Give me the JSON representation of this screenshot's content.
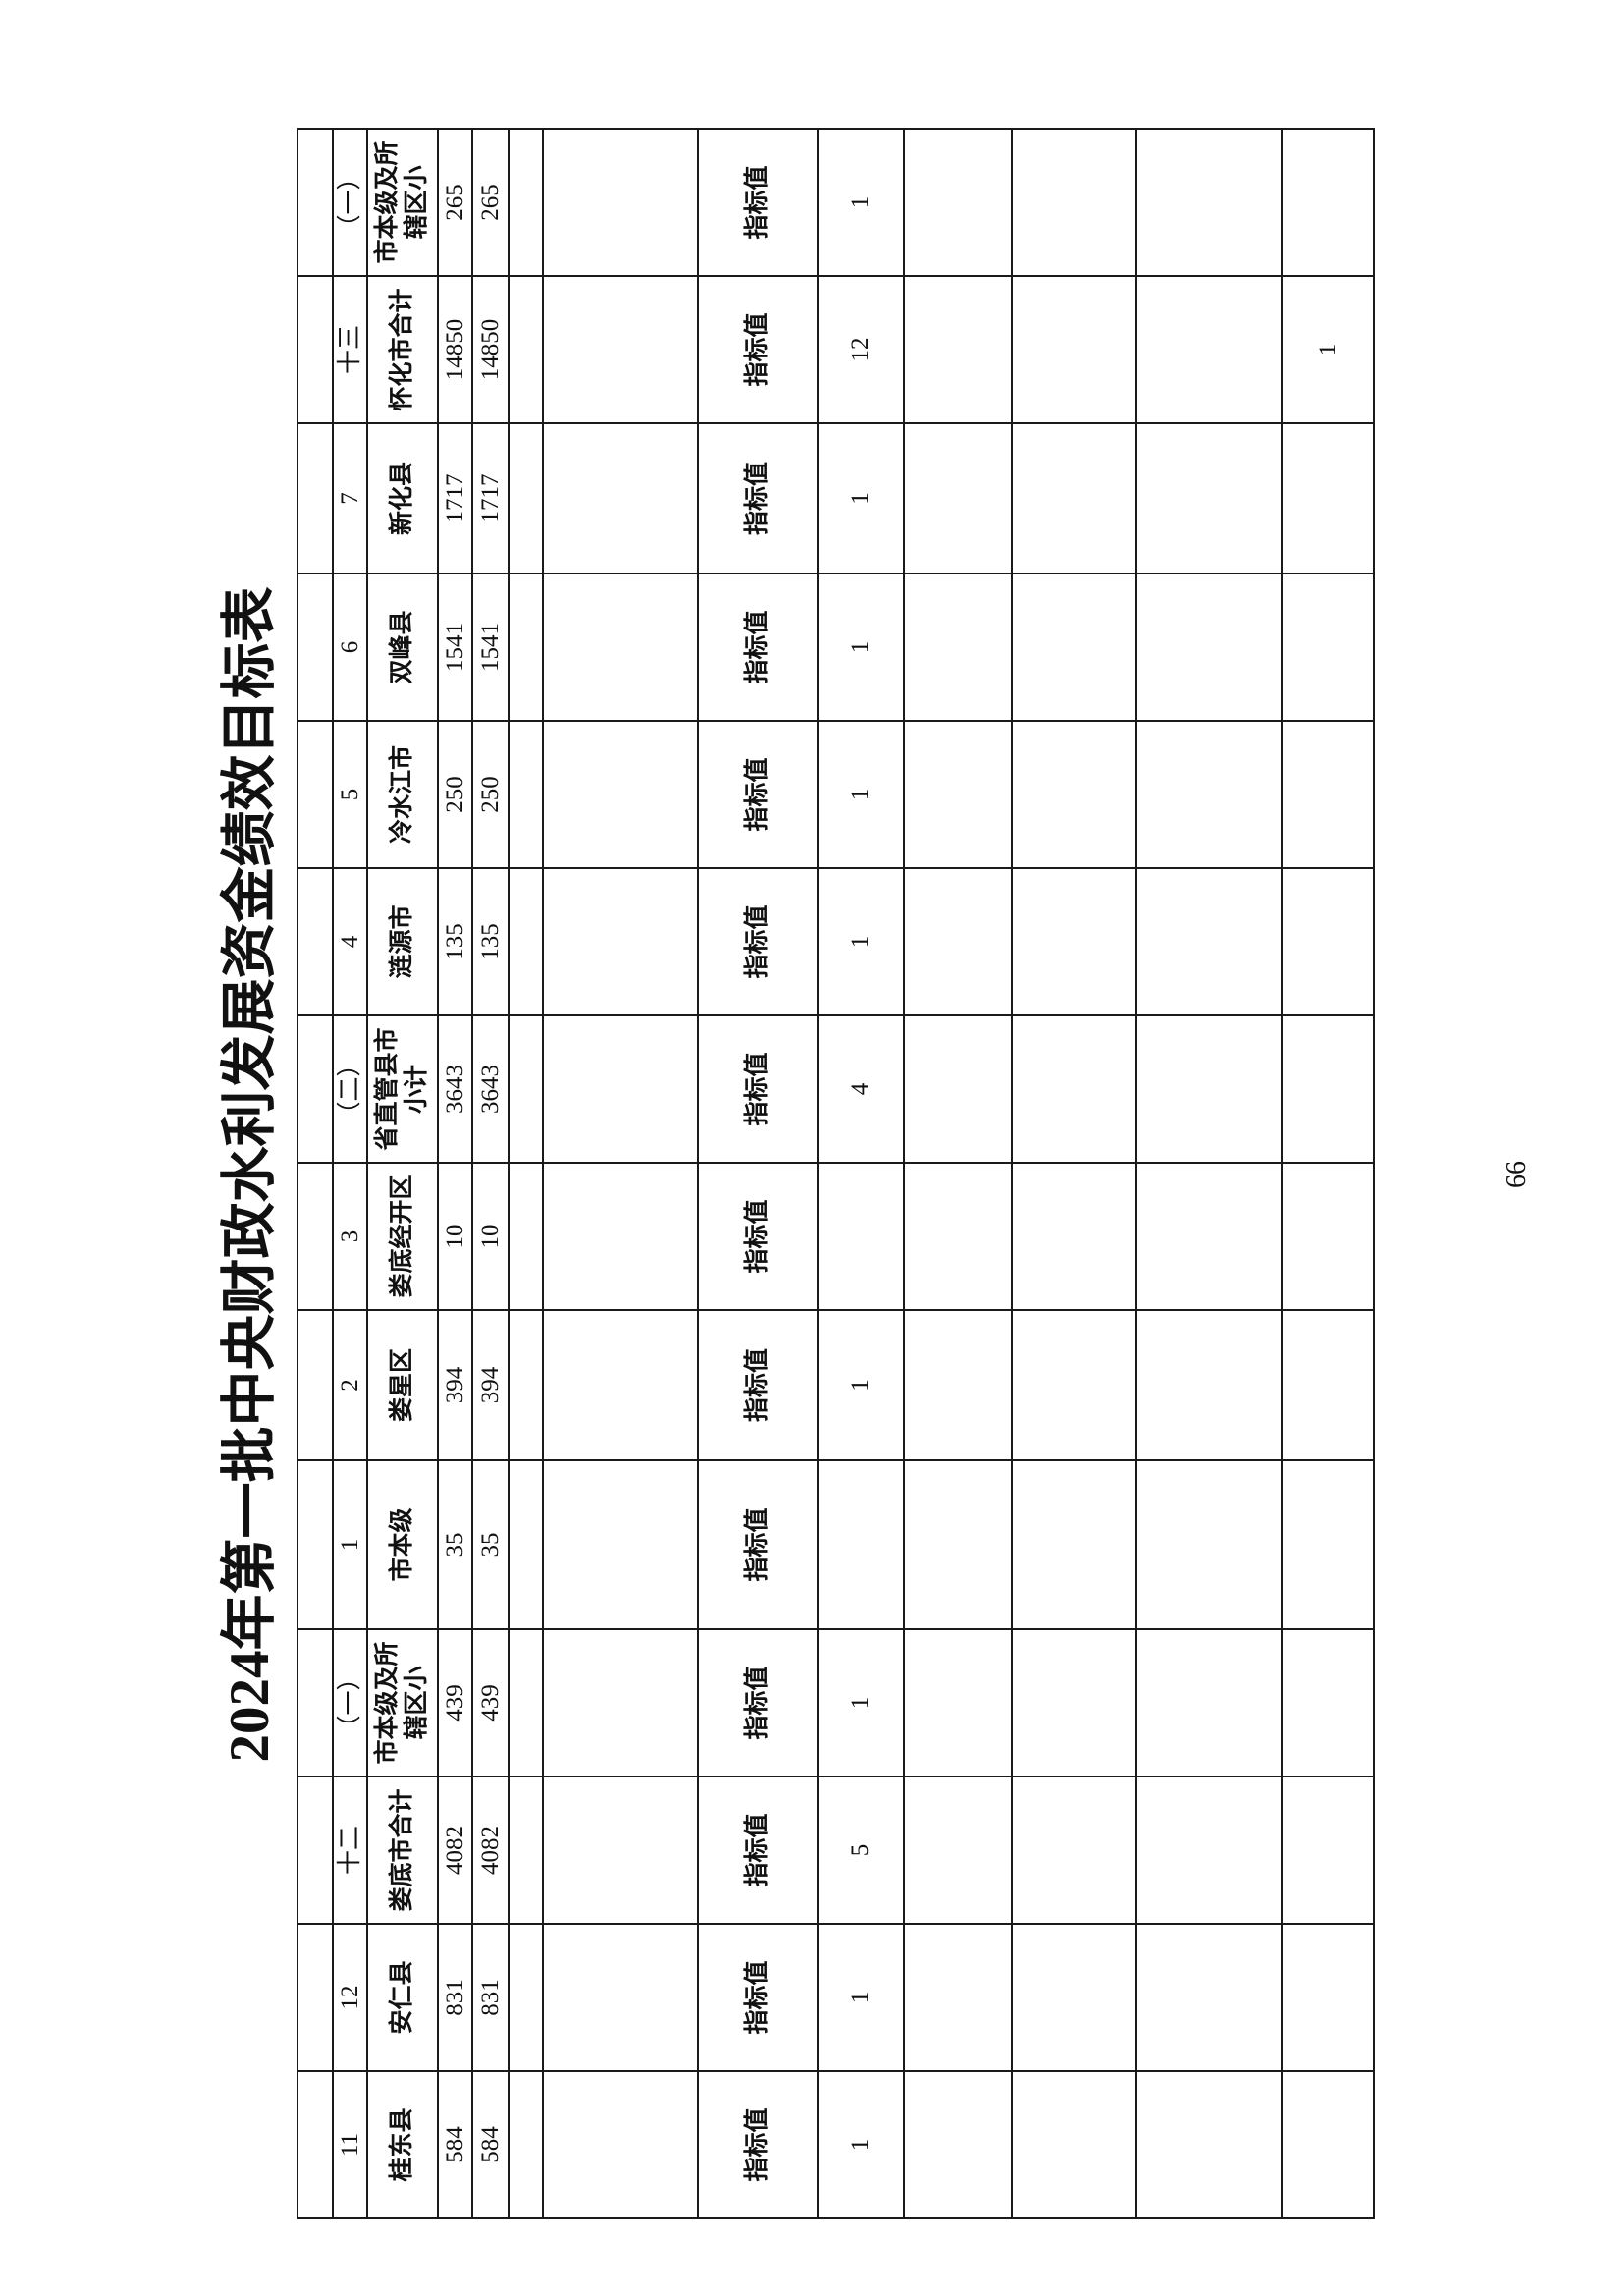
{
  "document": {
    "title": "2024年第一批中央财政水利发展资金绩效目标表",
    "page_number": "66"
  },
  "table": {
    "columns": [
      {
        "index": "11",
        "name": "桂东县",
        "amount_1": "584",
        "amount_2": "584",
        "label": "指标值",
        "target": "1",
        "extra": ""
      },
      {
        "index": "12",
        "name": "安仁县",
        "amount_1": "831",
        "amount_2": "831",
        "label": "指标值",
        "target": "1",
        "extra": ""
      },
      {
        "index": "十二",
        "name": "娄底市合计",
        "amount_1": "4082",
        "amount_2": "4082",
        "label": "指标值",
        "target": "5",
        "extra": ""
      },
      {
        "index": "（一）",
        "name": "市本级及所辖区小",
        "amount_1": "439",
        "amount_2": "439",
        "label": "指标值",
        "target": "1",
        "extra": ""
      },
      {
        "index": "1",
        "name": "市本级",
        "amount_1": "35",
        "amount_2": "35",
        "label": "指标值",
        "target": "",
        "extra": ""
      },
      {
        "index": "2",
        "name": "娄星区",
        "amount_1": "394",
        "amount_2": "394",
        "label": "指标值",
        "target": "1",
        "extra": ""
      },
      {
        "index": "3",
        "name": "娄底经开区",
        "amount_1": "10",
        "amount_2": "10",
        "label": "指标值",
        "target": "",
        "extra": ""
      },
      {
        "index": "（二）",
        "name": "省直管县市小计",
        "amount_1": "3643",
        "amount_2": "3643",
        "label": "指标值",
        "target": "4",
        "extra": ""
      },
      {
        "index": "4",
        "name": "涟源市",
        "amount_1": "135",
        "amount_2": "135",
        "label": "指标值",
        "target": "1",
        "extra": ""
      },
      {
        "index": "5",
        "name": "冷水江市",
        "amount_1": "250",
        "amount_2": "250",
        "label": "指标值",
        "target": "1",
        "extra": ""
      },
      {
        "index": "6",
        "name": "双峰县",
        "amount_1": "1541",
        "amount_2": "1541",
        "label": "指标值",
        "target": "1",
        "extra": ""
      },
      {
        "index": "7",
        "name": "新化县",
        "amount_1": "1717",
        "amount_2": "1717",
        "label": "指标值",
        "target": "1",
        "extra": ""
      },
      {
        "index": "十三",
        "name": "怀化市合计",
        "amount_1": "14850",
        "amount_2": "14850",
        "label": "指标值",
        "target": "12",
        "extra": "1"
      },
      {
        "index": "（一）",
        "name": "市本级及所辖区小",
        "amount_1": "265",
        "amount_2": "265",
        "label": "指标值",
        "target": "1",
        "extra": ""
      }
    ]
  }
}
